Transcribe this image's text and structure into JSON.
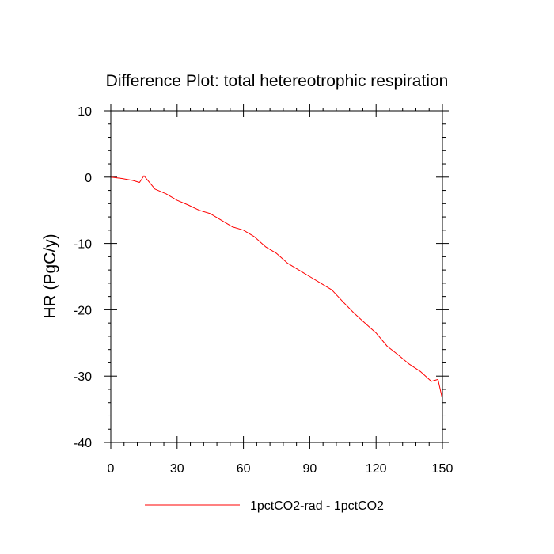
{
  "chart_data": {
    "type": "line",
    "title": "Difference Plot: total hetereotrophic respiration",
    "ylabel": "HR  (PgC/y)",
    "xlabel": "",
    "xlim": [
      0,
      150
    ],
    "ylim": [
      -40,
      10
    ],
    "x_ticks": [
      0,
      30,
      60,
      90,
      120,
      150
    ],
    "x_tick_labels": [
      "0",
      "30",
      "60",
      "90",
      "120",
      "150"
    ],
    "y_ticks": [
      10,
      0,
      -10,
      -20,
      -30,
      -40
    ],
    "y_tick_labels": [
      "10",
      "0",
      "-10",
      "-20",
      "-30",
      "-40"
    ],
    "legend_position": "bottom-center",
    "series": [
      {
        "name": "1pctCO2-rad - 1pctCO2",
        "color": "#ff0000",
        "x": [
          0,
          5,
          10,
          13,
          15,
          20,
          25,
          30,
          35,
          40,
          45,
          50,
          55,
          60,
          65,
          70,
          75,
          80,
          85,
          90,
          95,
          100,
          105,
          110,
          115,
          120,
          125,
          130,
          135,
          140,
          145,
          148,
          150
        ],
        "y": [
          0.0,
          -0.2,
          -0.5,
          -0.8,
          0.2,
          -1.8,
          -2.5,
          -3.5,
          -4.2,
          -5.0,
          -5.5,
          -6.5,
          -7.5,
          -8.0,
          -9.0,
          -10.5,
          -11.5,
          -13.0,
          -14.0,
          -15.0,
          -16.0,
          -17.0,
          -18.8,
          -20.5,
          -22.0,
          -23.5,
          -25.5,
          -26.8,
          -28.2,
          -29.3,
          -30.8,
          -30.5,
          -33.5
        ]
      }
    ]
  }
}
